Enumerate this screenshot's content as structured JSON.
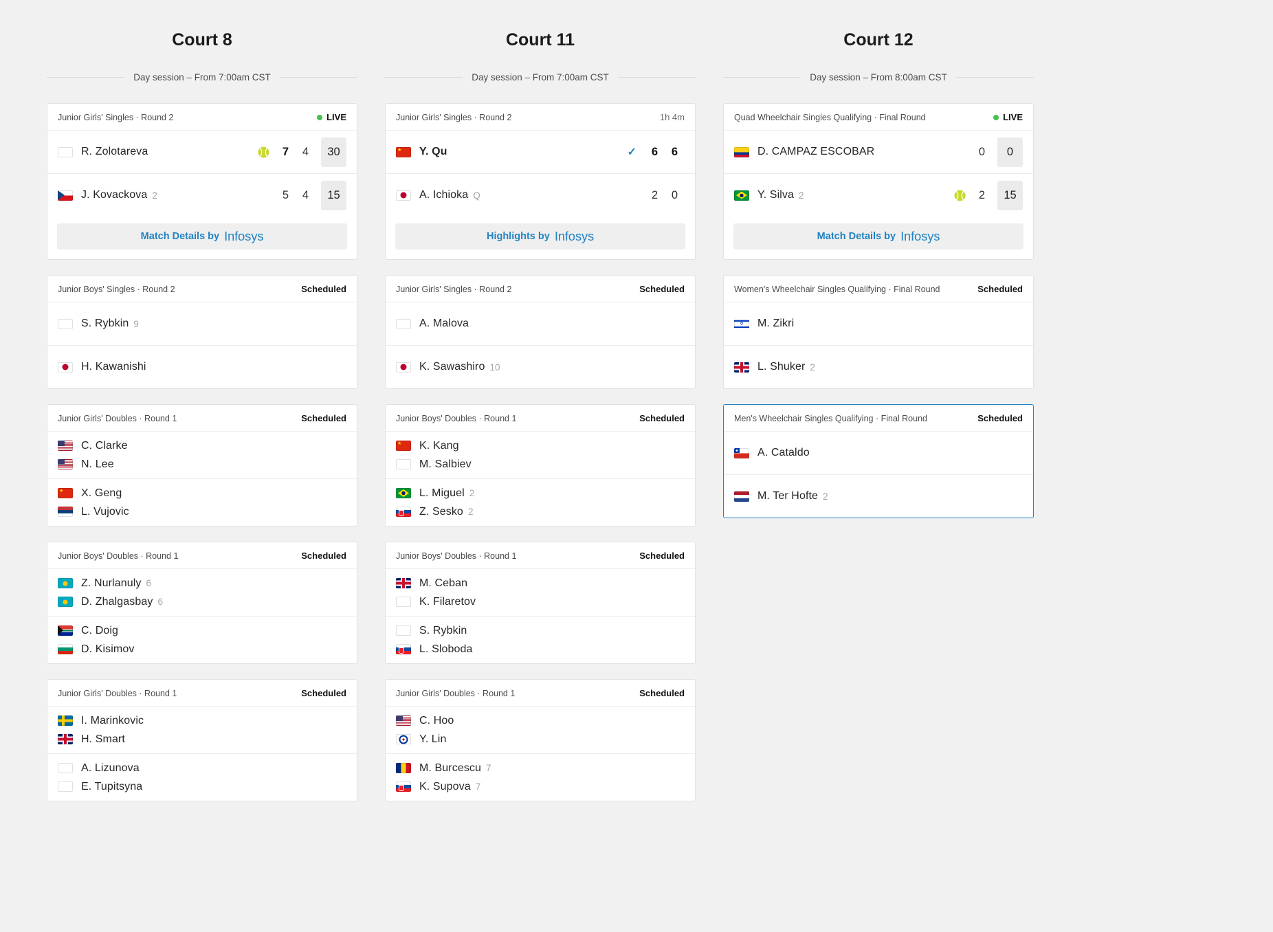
{
  "theme": {
    "background": "#f1f1f1",
    "card_background": "#ffffff",
    "accent_blue": "#2283c3",
    "live_green": "#43c24e",
    "ball_yellow": "#c9d92e",
    "game_box_gray": "#ebebeb"
  },
  "icons": {
    "winner_check": "✓"
  },
  "courts": [
    {
      "title": "Court 8",
      "session": "Day session – From 7:00am CST",
      "matches": [
        {
          "event": "Junior Girls' Singles · Round 2",
          "status": {
            "kind": "live",
            "label": "LIVE"
          },
          "teams": [
            {
              "players": [
                {
                  "flag": "neutral",
                  "name": "R. Zolotareva"
                }
              ],
              "serving": true,
              "sets": [
                {
                  "v": "7",
                  "b": true
                },
                {
                  "v": "4"
                }
              ],
              "game": "30"
            },
            {
              "players": [
                {
                  "flag": "cz",
                  "name": "J. Kovackova",
                  "seed": "2"
                }
              ],
              "sets": [
                {
                  "v": "5"
                },
                {
                  "v": "4"
                }
              ],
              "game": "15"
            }
          ],
          "action": {
            "label": "Match Details by",
            "brand": "Infosys"
          }
        },
        {
          "event": "Junior Boys' Singles · Round 2",
          "status": {
            "kind": "scheduled",
            "label": "Scheduled"
          },
          "teams": [
            {
              "players": [
                {
                  "flag": "neutral",
                  "name": "S. Rybkin",
                  "seed": "9"
                }
              ]
            },
            {
              "players": [
                {
                  "flag": "jp",
                  "name": "H. Kawanishi"
                }
              ]
            }
          ]
        },
        {
          "event": "Junior Girls' Doubles · Round 1",
          "status": {
            "kind": "scheduled",
            "label": "Scheduled"
          },
          "teams": [
            {
              "players": [
                {
                  "flag": "us",
                  "name": "C. Clarke"
                },
                {
                  "flag": "us",
                  "name": "N. Lee"
                }
              ]
            },
            {
              "players": [
                {
                  "flag": "cn",
                  "name": "X. Geng"
                },
                {
                  "flag": "rs",
                  "name": "L. Vujovic"
                }
              ]
            }
          ]
        },
        {
          "event": "Junior Boys' Doubles · Round 1",
          "status": {
            "kind": "scheduled",
            "label": "Scheduled"
          },
          "teams": [
            {
              "players": [
                {
                  "flag": "kz",
                  "name": "Z. Nurlanuly",
                  "seed": "6"
                },
                {
                  "flag": "kz",
                  "name": "D. Zhalgasbay",
                  "seed": "6"
                }
              ]
            },
            {
              "players": [
                {
                  "flag": "za",
                  "name": "C. Doig"
                },
                {
                  "flag": "bg",
                  "name": "D. Kisimov"
                }
              ]
            }
          ]
        },
        {
          "event": "Junior Girls' Doubles · Round 1",
          "status": {
            "kind": "scheduled",
            "label": "Scheduled"
          },
          "teams": [
            {
              "players": [
                {
                  "flag": "se",
                  "name": "I. Marinkovic"
                },
                {
                  "flag": "gb",
                  "name": "H. Smart"
                }
              ]
            },
            {
              "players": [
                {
                  "flag": "neutral",
                  "name": "A. Lizunova"
                },
                {
                  "flag": "neutral",
                  "name": "E. Tupitsyna"
                }
              ]
            }
          ]
        }
      ]
    },
    {
      "title": "Court 11",
      "session": "Day session – From 7:00am CST",
      "matches": [
        {
          "event": "Junior Girls' Singles · Round 2",
          "status": {
            "kind": "duration",
            "label": "1h 4m"
          },
          "teams": [
            {
              "players": [
                {
                  "flag": "cn",
                  "name": "Y. Qu"
                }
              ],
              "winner": true,
              "sets": [
                {
                  "v": "6",
                  "b": true
                },
                {
                  "v": "6",
                  "b": true
                }
              ]
            },
            {
              "players": [
                {
                  "flag": "jp",
                  "name": "A. Ichioka",
                  "seed": "Q"
                }
              ],
              "sets": [
                {
                  "v": "2"
                },
                {
                  "v": "0"
                }
              ]
            }
          ],
          "action": {
            "label": "Highlights by",
            "brand": "Infosys"
          }
        },
        {
          "event": "Junior Girls' Singles · Round 2",
          "status": {
            "kind": "scheduled",
            "label": "Scheduled"
          },
          "teams": [
            {
              "players": [
                {
                  "flag": "neutral",
                  "name": "A. Malova"
                }
              ]
            },
            {
              "players": [
                {
                  "flag": "jp",
                  "name": "K. Sawashiro",
                  "seed": "10"
                }
              ]
            }
          ]
        },
        {
          "event": "Junior Boys' Doubles · Round 1",
          "status": {
            "kind": "scheduled",
            "label": "Scheduled"
          },
          "teams": [
            {
              "players": [
                {
                  "flag": "cn",
                  "name": "K. Kang"
                },
                {
                  "flag": "neutral",
                  "name": "M. Salbiev"
                }
              ]
            },
            {
              "players": [
                {
                  "flag": "br",
                  "name": "L. Miguel",
                  "seed": "2"
                },
                {
                  "flag": "sk",
                  "name": "Z. Sesko",
                  "seed": "2"
                }
              ]
            }
          ]
        },
        {
          "event": "Junior Boys' Doubles · Round 1",
          "status": {
            "kind": "scheduled",
            "label": "Scheduled"
          },
          "teams": [
            {
              "players": [
                {
                  "flag": "gb",
                  "name": "M. Ceban"
                },
                {
                  "flag": "neutral",
                  "name": "K. Filaretov"
                }
              ]
            },
            {
              "players": [
                {
                  "flag": "neutral",
                  "name": "S. Rybkin"
                },
                {
                  "flag": "sk",
                  "name": "L. Sloboda"
                }
              ]
            }
          ]
        },
        {
          "event": "Junior Girls' Doubles · Round 1",
          "status": {
            "kind": "scheduled",
            "label": "Scheduled"
          },
          "teams": [
            {
              "players": [
                {
                  "flag": "us",
                  "name": "C. Hoo"
                },
                {
                  "flag": "tpe",
                  "name": "Y. Lin"
                }
              ]
            },
            {
              "players": [
                {
                  "flag": "ro",
                  "name": "M. Burcescu",
                  "seed": "7"
                },
                {
                  "flag": "sk",
                  "name": "K. Supova",
                  "seed": "7"
                }
              ]
            }
          ]
        }
      ]
    },
    {
      "title": "Court 12",
      "session": "Day session – From 8:00am CST",
      "matches": [
        {
          "event": "Quad Wheelchair Singles Qualifying · Final Round",
          "status": {
            "kind": "live",
            "label": "LIVE"
          },
          "teams": [
            {
              "players": [
                {
                  "flag": "co",
                  "name": "D. CAMPAZ ESCOBAR"
                }
              ],
              "sets": [
                {
                  "v": "0"
                }
              ],
              "game": "0"
            },
            {
              "players": [
                {
                  "flag": "br",
                  "name": "Y. Silva",
                  "seed": "2"
                }
              ],
              "serving": true,
              "sets": [
                {
                  "v": "2"
                }
              ],
              "game": "15"
            }
          ],
          "action": {
            "label": "Match Details by",
            "brand": "Infosys"
          }
        },
        {
          "event": "Women's Wheelchair Singles Qualifying · Final Round",
          "status": {
            "kind": "scheduled",
            "label": "Scheduled"
          },
          "teams": [
            {
              "players": [
                {
                  "flag": "il",
                  "name": "M. Zikri"
                }
              ]
            },
            {
              "players": [
                {
                  "flag": "gb",
                  "name": "L. Shuker",
                  "seed": "2"
                }
              ]
            }
          ]
        },
        {
          "event": "Men's Wheelchair Singles Qualifying · Final Round",
          "status": {
            "kind": "scheduled",
            "label": "Scheduled"
          },
          "selected": true,
          "teams": [
            {
              "players": [
                {
                  "flag": "cl",
                  "name": "A. Cataldo"
                }
              ]
            },
            {
              "players": [
                {
                  "flag": "nl",
                  "name": "M. Ter Hofte",
                  "seed": "2"
                }
              ]
            }
          ]
        }
      ]
    }
  ]
}
